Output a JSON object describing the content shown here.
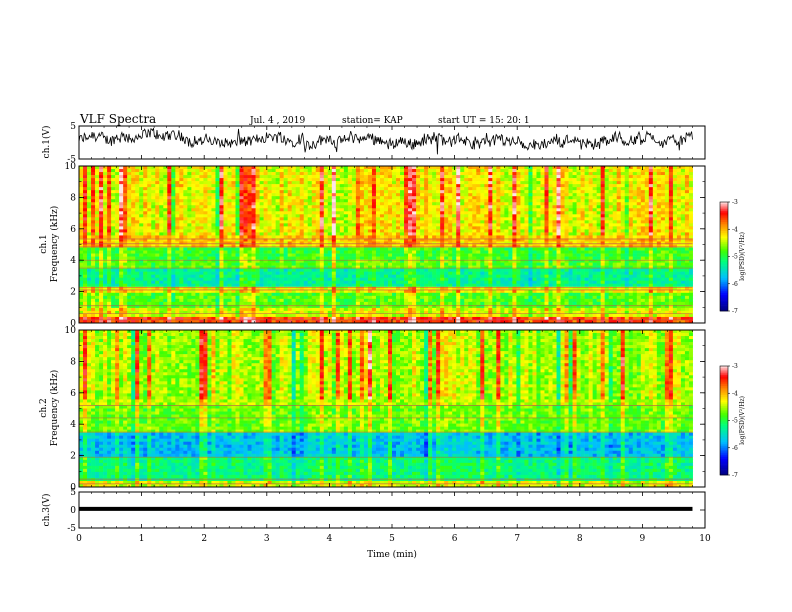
{
  "header": {
    "title": "VLF Spectra",
    "date": "Jul. 4 , 2019",
    "station": "station= KAP",
    "start": "start  UT =   15: 20: 1"
  },
  "colors": {
    "trace": "#000000",
    "colormap": [
      "#000080",
      "#0000ff",
      "#00bfff",
      "#00ff80",
      "#40ff00",
      "#ffff00",
      "#ff8000",
      "#ff0000",
      "#ffffff"
    ]
  },
  "chart_data": [
    {
      "type": "line",
      "ylabel": "ch.1(V)",
      "xlim": [
        0,
        10
      ],
      "ylim": [
        -5,
        5
      ],
      "yticks": [
        5,
        -5
      ],
      "x_data_extent": [
        0,
        9.8
      ],
      "note_shape": "noisy waveform fluctuating mostly between -3 and 4 V"
    },
    {
      "type": "heatmap",
      "ylabel": "ch.1\nFrequency (kHz)",
      "xlim": [
        0,
        10
      ],
      "ylim": [
        0,
        10
      ],
      "yticks": [
        0,
        2,
        4,
        6,
        8,
        10
      ],
      "colorbar": {
        "label": "log(PSD)(V²/Hz)",
        "range": [
          -7,
          -3
        ],
        "ticks": [
          -3,
          -4,
          -5,
          -6,
          -7
        ]
      },
      "bands_khz": [
        {
          "from": 0,
          "to": 0.4,
          "level": -3.6
        },
        {
          "from": 0.4,
          "to": 1.0,
          "level": -4.4
        },
        {
          "from": 1.0,
          "to": 2.0,
          "level": -4.8
        },
        {
          "from": 2.0,
          "to": 2.3,
          "level": -4.3
        },
        {
          "from": 2.3,
          "to": 3.4,
          "level": -5.3
        },
        {
          "from": 3.4,
          "to": 4.0,
          "level": -4.8
        },
        {
          "from": 4.0,
          "to": 4.8,
          "level": -4.9
        },
        {
          "from": 4.8,
          "to": 5.5,
          "level": -4.1
        },
        {
          "from": 5.5,
          "to": 10,
          "level": -4.3
        }
      ]
    },
    {
      "type": "heatmap",
      "ylabel": "ch.2\nFrequency (kHz)",
      "xlim": [
        0,
        10
      ],
      "ylim": [
        0,
        10
      ],
      "yticks": [
        0,
        2,
        4,
        6,
        8,
        10
      ],
      "colorbar": {
        "label": "log(PSD)(V²/Hz)",
        "range": [
          -7,
          -3
        ],
        "ticks": [
          -3,
          -4,
          -5,
          -6,
          -7
        ]
      },
      "bands_khz": [
        {
          "from": 0,
          "to": 0.3,
          "level": -4.4
        },
        {
          "from": 0.3,
          "to": 2.0,
          "level": -5.2
        },
        {
          "from": 2.0,
          "to": 3.5,
          "level": -5.7
        },
        {
          "from": 3.5,
          "to": 5.2,
          "level": -4.7
        },
        {
          "from": 5.2,
          "to": 10,
          "level": -4.5
        }
      ]
    },
    {
      "type": "line",
      "ylabel": "ch.3(V)",
      "xlabel": "Time (min)",
      "xlim": [
        0,
        10
      ],
      "ylim": [
        -5,
        5
      ],
      "yticks": [
        5,
        0,
        -5
      ],
      "x": [
        0,
        9.8
      ],
      "y": [
        0.3,
        0.3
      ],
      "xticks": [
        0,
        1,
        2,
        3,
        4,
        5,
        6,
        7,
        8,
        9,
        10
      ]
    }
  ]
}
